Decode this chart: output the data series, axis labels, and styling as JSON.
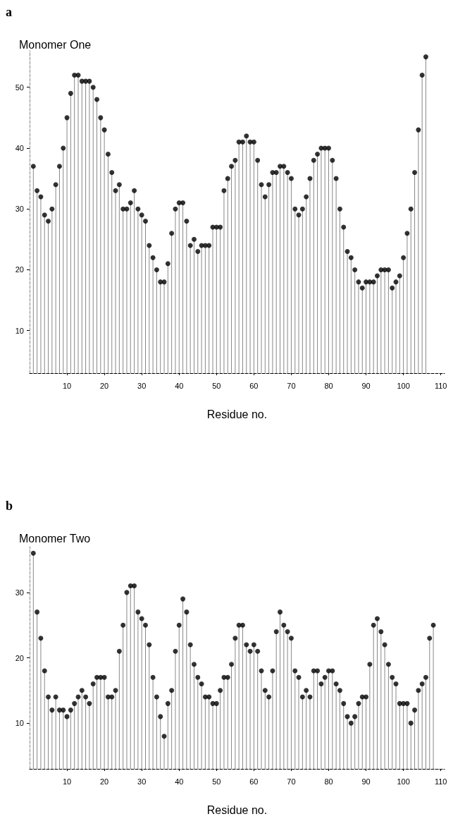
{
  "chart_data": [
    {
      "type": "lollipop",
      "title": "Monomer One",
      "xlabel": "Residue no.",
      "annotations": [
        "a"
      ],
      "color": "#000000",
      "marker": "circle",
      "x": [
        1,
        2,
        3,
        4,
        5,
        6,
        7,
        8,
        9,
        10,
        11,
        12,
        13,
        14,
        15,
        16,
        17,
        18,
        19,
        20,
        21,
        22,
        23,
        24,
        25,
        26,
        27,
        28,
        29,
        30,
        31,
        32,
        33,
        34,
        35,
        36,
        37,
        38,
        39,
        40,
        41,
        42,
        43,
        44,
        45,
        46,
        47,
        48,
        49,
        50,
        51,
        52,
        53,
        54,
        55,
        56,
        57,
        58,
        59,
        60,
        61,
        62,
        63,
        64,
        65,
        66,
        67,
        68,
        69,
        70,
        71,
        72,
        73,
        74,
        75,
        76,
        77,
        78,
        79,
        80,
        81,
        82,
        83,
        84,
        85,
        86,
        87,
        88,
        89,
        90,
        91,
        92,
        93,
        94,
        95,
        96,
        97,
        98,
        99,
        100,
        101,
        102,
        103,
        104,
        105,
        106
      ],
      "values": [
        37,
        33,
        32,
        29,
        28,
        30,
        34,
        37,
        40,
        45,
        49,
        52,
        52,
        51,
        51,
        51,
        50,
        48,
        45,
        43,
        39,
        36,
        33,
        34,
        30,
        30,
        31,
        33,
        30,
        29,
        28,
        24,
        22,
        20,
        18,
        18,
        21,
        26,
        30,
        31,
        31,
        28,
        24,
        25,
        23,
        24,
        24,
        24,
        27,
        27,
        27,
        33,
        35,
        37,
        38,
        41,
        41,
        42,
        41,
        41,
        38,
        34,
        32,
        34,
        36,
        36,
        37,
        37,
        36,
        35,
        30,
        29,
        30,
        32,
        35,
        38,
        39,
        40,
        40,
        40,
        38,
        35,
        30,
        27,
        23,
        22,
        20,
        18,
        17,
        18,
        18,
        18,
        19,
        20,
        20,
        20,
        17,
        18,
        19,
        22,
        26,
        30,
        36,
        43,
        52,
        55
      ],
      "xlim": [
        0,
        111
      ],
      "xticks": [
        10,
        20,
        30,
        40,
        50,
        60,
        70,
        80,
        90,
        100,
        110
      ],
      "ylim": [
        3,
        56
      ],
      "yticks": [
        10,
        20,
        30,
        40,
        50
      ]
    },
    {
      "type": "lollipop",
      "title": "Monomer Two",
      "xlabel": "Residue no.",
      "annotations": [
        "b"
      ],
      "color": "#000000",
      "marker": "circle",
      "x": [
        1,
        2,
        3,
        4,
        5,
        6,
        7,
        8,
        9,
        10,
        11,
        12,
        13,
        14,
        15,
        16,
        17,
        18,
        19,
        20,
        21,
        22,
        23,
        24,
        25,
        26,
        27,
        28,
        29,
        30,
        31,
        32,
        33,
        34,
        35,
        36,
        37,
        38,
        39,
        40,
        41,
        42,
        43,
        44,
        45,
        46,
        47,
        48,
        49,
        50,
        51,
        52,
        53,
        54,
        55,
        56,
        57,
        58,
        59,
        60,
        61,
        62,
        63,
        64,
        65,
        66,
        67,
        68,
        69,
        70,
        71,
        72,
        73,
        74,
        75,
        76,
        77,
        78,
        79,
        80,
        81,
        82,
        83,
        84,
        85,
        86,
        87,
        88,
        89,
        90,
        91,
        92,
        93,
        94,
        95,
        96,
        97,
        98,
        99,
        100,
        101,
        102,
        103,
        104,
        105,
        106,
        107,
        108
      ],
      "values": [
        36,
        27,
        23,
        18,
        14,
        12,
        14,
        12,
        12,
        11,
        12,
        13,
        14,
        15,
        14,
        13,
        16,
        17,
        17,
        17,
        14,
        14,
        15,
        21,
        25,
        30,
        31,
        31,
        27,
        26,
        25,
        22,
        17,
        14,
        11,
        8,
        13,
        15,
        21,
        25,
        29,
        27,
        22,
        19,
        17,
        16,
        14,
        14,
        13,
        13,
        15,
        17,
        17,
        19,
        23,
        25,
        25,
        22,
        21,
        22,
        21,
        18,
        15,
        14,
        18,
        24,
        27,
        25,
        24,
        23,
        18,
        17,
        14,
        15,
        14,
        18,
        18,
        16,
        17,
        18,
        18,
        16,
        15,
        13,
        11,
        10,
        11,
        13,
        14,
        14,
        19,
        25,
        26,
        24,
        22,
        19,
        17,
        16,
        13,
        13,
        13,
        10,
        12,
        15,
        16,
        17,
        23,
        25
      ],
      "xlim": [
        0,
        111
      ],
      "xticks": [
        10,
        20,
        30,
        40,
        50,
        60,
        70,
        80,
        90,
        100,
        110
      ],
      "ylim": [
        3,
        37
      ],
      "yticks": [
        10,
        20,
        30
      ]
    }
  ]
}
